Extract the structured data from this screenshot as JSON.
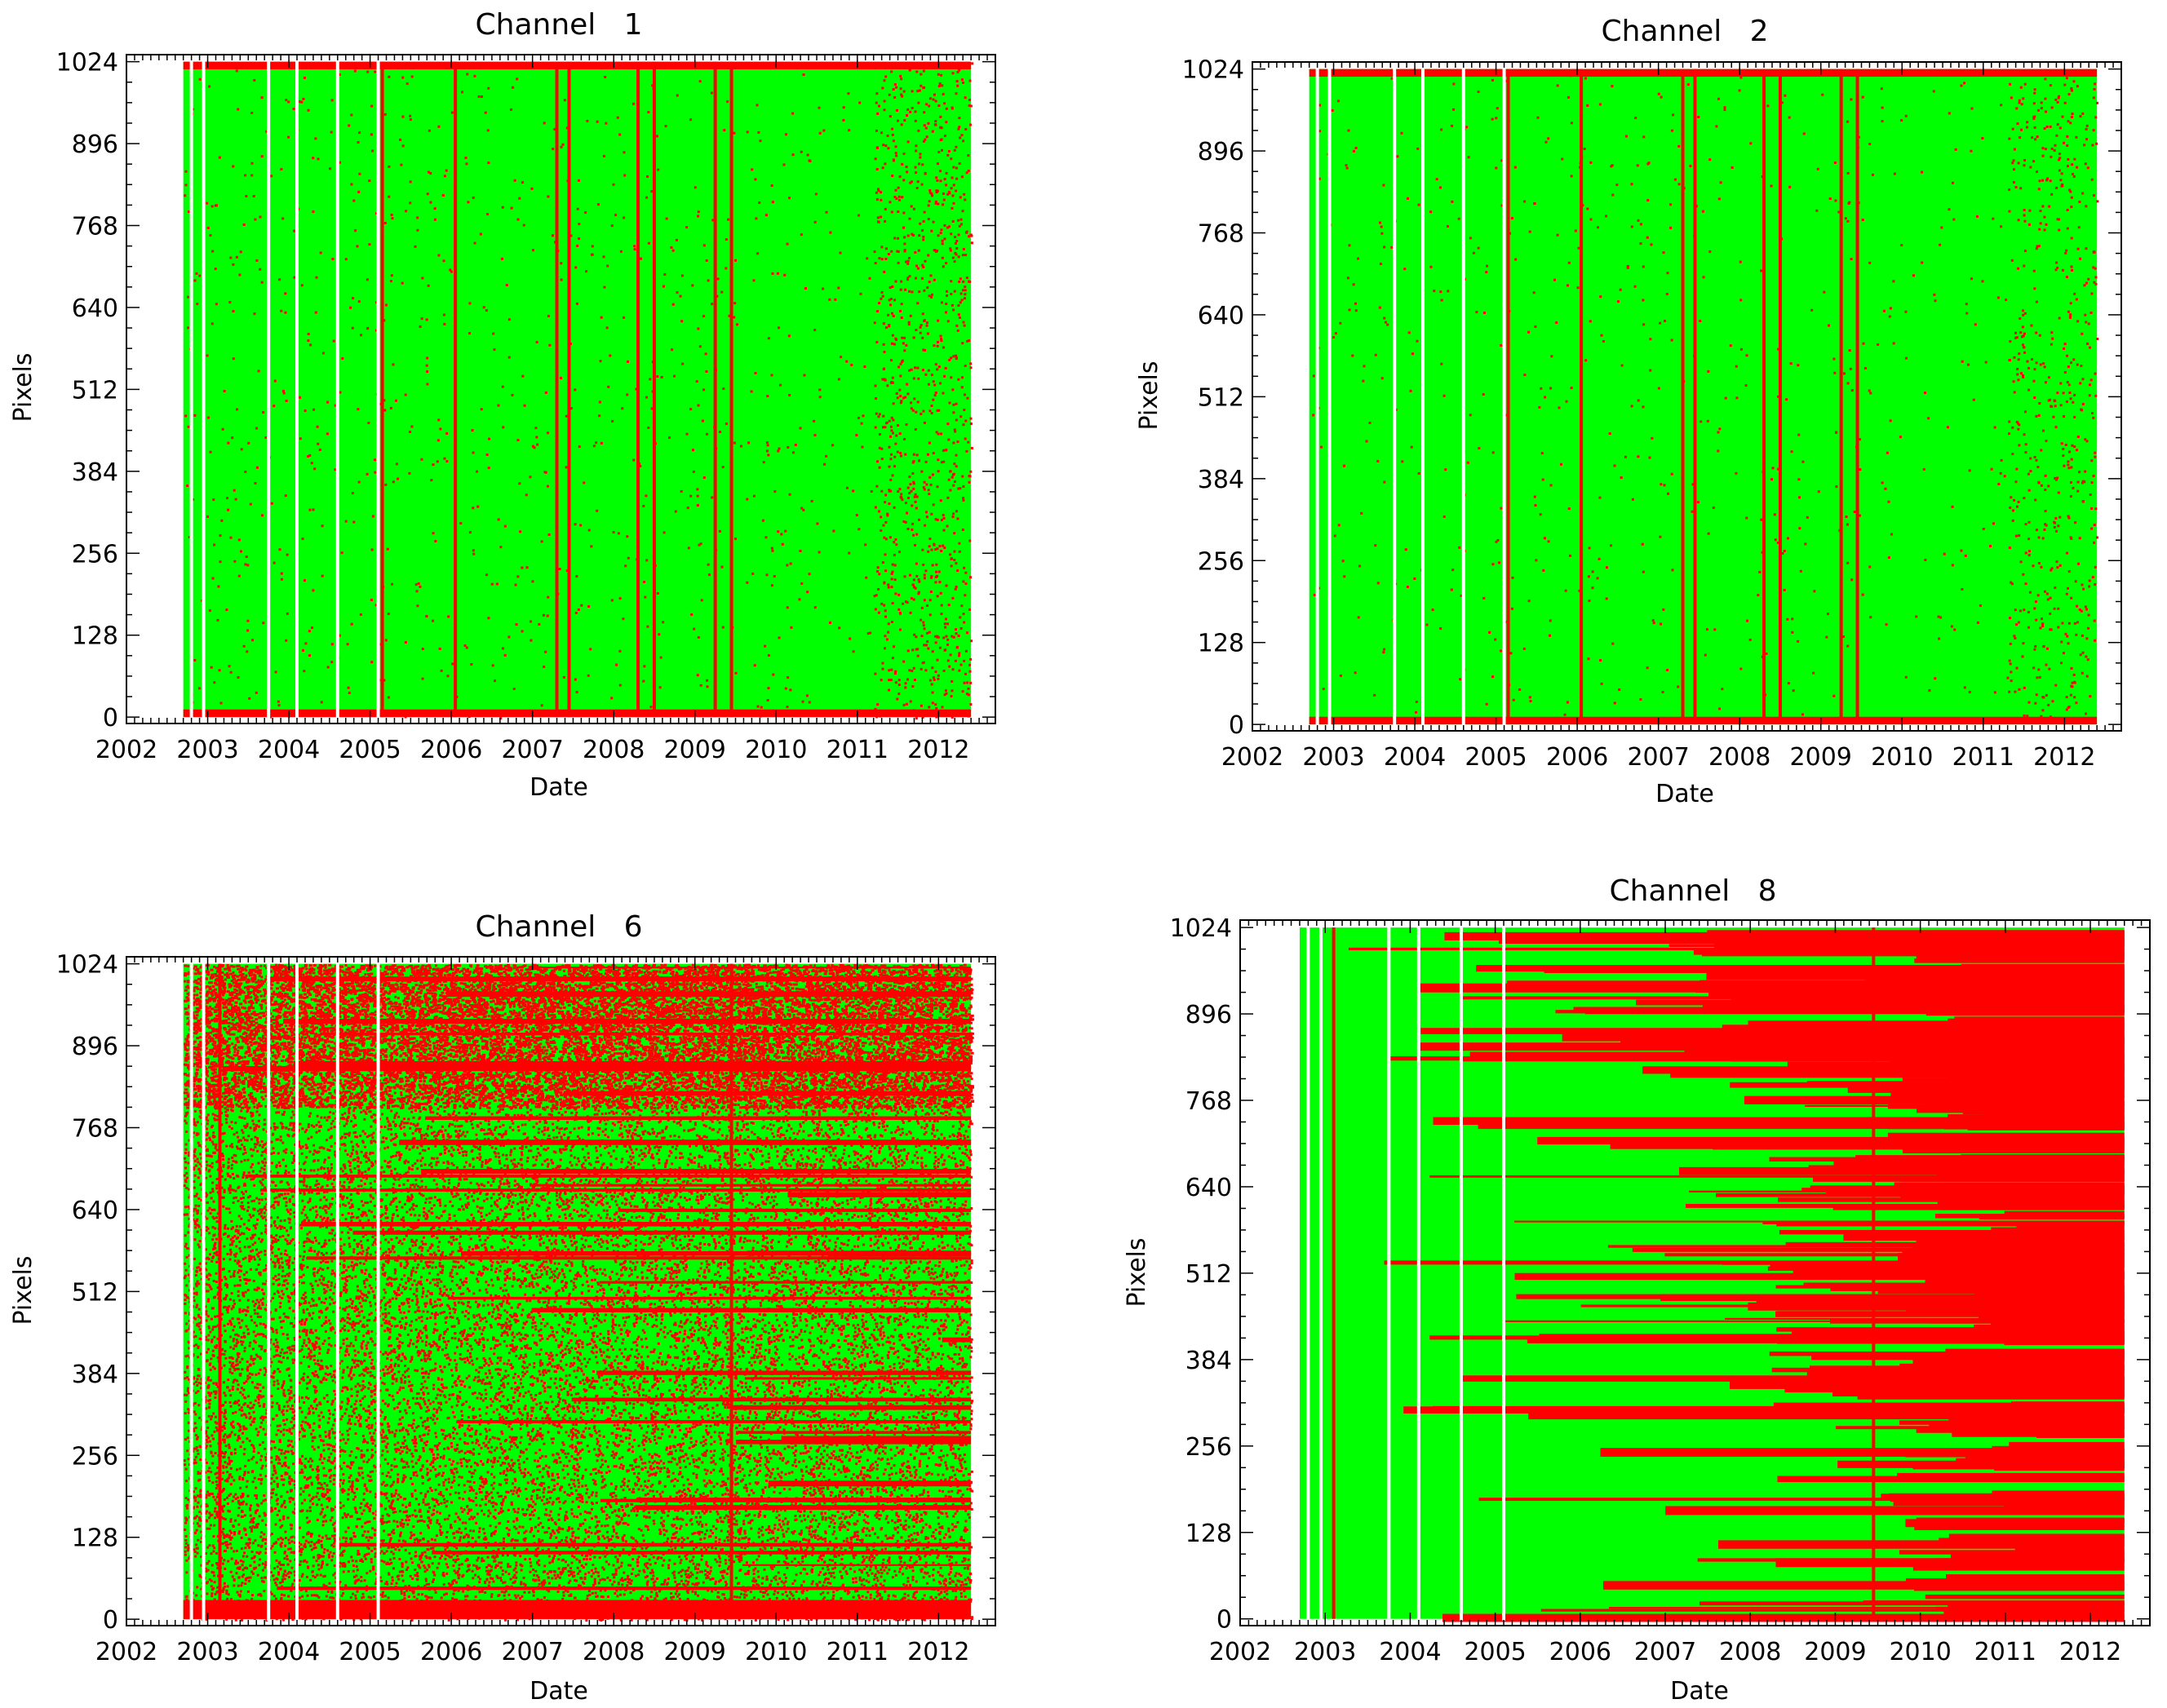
{
  "figure": {
    "colors": {
      "good": "#00ff00",
      "bad": "#ff0000",
      "axis": "#000000",
      "gap": "#ffffff"
    }
  },
  "chart_data": [
    {
      "type": "heatmap",
      "title": "Channel   1",
      "xlabel": "Date",
      "ylabel": "Pixels",
      "xlim": [
        2002,
        2012.7
      ],
      "ylim": [
        -10,
        1035
      ],
      "xticks": [
        2002,
        2003,
        2004,
        2005,
        2006,
        2007,
        2008,
        2009,
        2010,
        2011,
        2012
      ],
      "yticks": [
        0,
        128,
        256,
        384,
        512,
        640,
        768,
        896,
        1024
      ],
      "xtick_labels": [
        "2002",
        "2003",
        "2004",
        "2005",
        "2006",
        "2007",
        "2008",
        "2009",
        "2010",
        "2011",
        "2012"
      ],
      "ytick_labels": [
        "0",
        "128",
        "256",
        "384",
        "512",
        "640",
        "768",
        "896",
        "1024"
      ],
      "data_range": [
        2002.7,
        2012.4
      ],
      "gaps": [
        2002.8,
        2002.95,
        2003.75,
        2004.1,
        2004.6,
        2005.1
      ],
      "red_lines": [
        2005.15,
        2006.05,
        2007.3,
        2007.45,
        2008.3,
        2008.5,
        2009.25,
        2009.45
      ],
      "red_bands": [
        [
          0,
          12
        ],
        [
          1012,
          1024
        ]
      ],
      "scatter_density": 0.012,
      "late_density": 0.08,
      "late_start": 2011.2
    },
    {
      "type": "heatmap",
      "title": "Channel   2",
      "xlabel": "Date",
      "ylabel": "Pixels",
      "xlim": [
        2002,
        2012.7
      ],
      "ylim": [
        -10,
        1035
      ],
      "xticks": [
        2002,
        2003,
        2004,
        2005,
        2006,
        2007,
        2008,
        2009,
        2010,
        2011,
        2012
      ],
      "yticks": [
        0,
        128,
        256,
        384,
        512,
        640,
        768,
        896,
        1024
      ],
      "xtick_labels": [
        "2002",
        "2003",
        "2004",
        "2005",
        "2006",
        "2007",
        "2008",
        "2009",
        "2010",
        "2011",
        "2012"
      ],
      "ytick_labels": [
        "0",
        "128",
        "256",
        "384",
        "512",
        "640",
        "768",
        "896",
        "1024"
      ],
      "data_range": [
        2002.7,
        2012.4
      ],
      "gaps": [
        2002.8,
        2002.95,
        2003.75,
        2004.1,
        2004.6,
        2005.1
      ],
      "red_lines": [
        2005.15,
        2006.05,
        2007.3,
        2007.45,
        2008.3,
        2008.5,
        2009.25,
        2009.45
      ],
      "red_bands": [
        [
          0,
          12
        ],
        [
          1012,
          1024
        ]
      ],
      "scatter_density": 0.008,
      "late_density": 0.05,
      "late_start": 2011.3
    },
    {
      "type": "heatmap",
      "title": "Channel   6",
      "xlabel": "Date",
      "ylabel": "Pixels",
      "xlim": [
        2002,
        2012.7
      ],
      "ylim": [
        -10,
        1035
      ],
      "xticks": [
        2002,
        2003,
        2004,
        2005,
        2006,
        2007,
        2008,
        2009,
        2010,
        2011,
        2012
      ],
      "yticks": [
        0,
        128,
        256,
        384,
        512,
        640,
        768,
        896,
        1024
      ],
      "xtick_labels": [
        "2002",
        "2003",
        "2004",
        "2005",
        "2006",
        "2007",
        "2008",
        "2009",
        "2010",
        "2011",
        "2012"
      ],
      "ytick_labels": [
        "0",
        "128",
        "256",
        "384",
        "512",
        "640",
        "768",
        "896",
        "1024"
      ],
      "data_range": [
        2002.7,
        2012.4
      ],
      "gaps": [
        2002.8,
        2002.95,
        2003.75,
        2004.1,
        2004.6,
        2005.1
      ],
      "red_lines": [
        2003.15,
        2009.45
      ],
      "red_bands": [
        [
          0,
          30
        ]
      ],
      "scatter_density": 0.28,
      "upper_start": 800,
      "upper_density": 0.55,
      "red_rows": 45
    },
    {
      "type": "heatmap",
      "title": "Channel   8",
      "xlabel": "Date",
      "ylabel": "Pixels",
      "xlim": [
        2002,
        2012.7
      ],
      "ylim": [
        -10,
        1035
      ],
      "xticks": [
        2002,
        2003,
        2004,
        2005,
        2006,
        2007,
        2008,
        2009,
        2010,
        2011,
        2012
      ],
      "yticks": [
        0,
        128,
        256,
        384,
        512,
        640,
        768,
        896,
        1024
      ],
      "xtick_labels": [
        "2002",
        "2003",
        "2004",
        "2005",
        "2006",
        "2007",
        "2008",
        "2009",
        "2010",
        "2011",
        "2012"
      ],
      "ytick_labels": [
        "0",
        "128",
        "256",
        "384",
        "512",
        "640",
        "768",
        "896",
        "1024"
      ],
      "data_range": [
        2002.7,
        2012.4
      ],
      "gaps": [
        2002.8,
        2002.95,
        2003.75,
        2004.1,
        2004.6,
        2005.1
      ],
      "red_lines": [
        2003.1,
        2009.45
      ],
      "red_bands": [],
      "red_rows": 160,
      "red_growth": true
    }
  ]
}
